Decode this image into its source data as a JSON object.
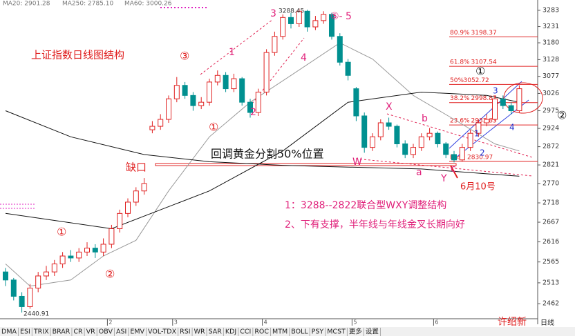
{
  "chart_data": {
    "type": "candlestick",
    "title": "上证指数日线图结构",
    "log_scale": true,
    "ylim": [
      2426,
      3294
    ],
    "yticks": [
      3283,
      3231,
      3180,
      3128,
      3077,
      3026,
      2975,
      2924,
      2872,
      2821,
      2770,
      2718,
      2667,
      2616,
      2565,
      2513,
      2462
    ],
    "up_color": "#e02020",
    "down_color": "#009090",
    "open": [
      2540,
      2520,
      2480,
      2455,
      2500,
      2530,
      2540,
      2560,
      2580,
      2575,
      2590,
      2600,
      2590,
      2610,
      2650,
      2690,
      2720,
      2750,
      2920,
      2930,
      2950,
      3010,
      3050,
      3020,
      2990,
      3000,
      3060,
      3080,
      3040,
      3070,
      3000,
      2970,
      3030,
      3150,
      3200,
      3260,
      3240,
      3280,
      3230,
      3250,
      3270,
      3200,
      3120,
      3040,
      2960,
      2870,
      2900,
      2940,
      2930,
      2880,
      2850,
      2870,
      2900,
      2910,
      2880,
      2850,
      2835,
      2870,
      2910,
      2940,
      2950,
      3010,
      2990,
      2975
    ],
    "high": [
      2550,
      2525,
      2490,
      2510,
      2540,
      2555,
      2570,
      2590,
      2595,
      2600,
      2615,
      2610,
      2625,
      2660,
      2700,
      2730,
      2760,
      2785,
      2945,
      2965,
      3020,
      3075,
      3060,
      3030,
      3015,
      3070,
      3095,
      3090,
      3085,
      3075,
      3010,
      3040,
      3160,
      3215,
      3270,
      3275,
      3288.45,
      3285,
      3265,
      3280,
      3275,
      3210,
      3130,
      3045,
      2970,
      2910,
      2950,
      2955,
      2935,
      2890,
      2880,
      2910,
      2925,
      2915,
      2885,
      2860,
      2880,
      2920,
      2950,
      2965,
      3020,
      3020,
      3000,
      3050
    ],
    "low": [
      2505,
      2470,
      2440.91,
      2450,
      2490,
      2520,
      2530,
      2550,
      2565,
      2565,
      2580,
      2575,
      2580,
      2600,
      2640,
      2680,
      2710,
      2740,
      2910,
      2920,
      2940,
      3000,
      3010,
      2975,
      2980,
      2990,
      3050,
      3030,
      3030,
      2990,
      2955,
      2960,
      3020,
      3140,
      3190,
      3225,
      3230,
      3215,
      3220,
      3240,
      3190,
      3110,
      3065,
      2945,
      2855,
      2860,
      2890,
      2920,
      2870,
      2840,
      2840,
      2860,
      2890,
      2870,
      2840,
      2828,
      2830,
      2860,
      2900,
      2930,
      2945,
      2980,
      2965,
      2970
    ],
    "close": [
      2520,
      2480,
      2455,
      2500,
      2530,
      2540,
      2560,
      2580,
      2575,
      2590,
      2600,
      2590,
      2610,
      2650,
      2690,
      2720,
      2750,
      2770,
      2930,
      2950,
      3010,
      3050,
      3020,
      2990,
      3000,
      3060,
      3080,
      3040,
      3070,
      3000,
      2970,
      3030,
      3150,
      3200,
      3260,
      3240,
      3280,
      3230,
      3250,
      3270,
      3200,
      3120,
      3080,
      2960,
      2870,
      2900,
      2940,
      2930,
      2880,
      2850,
      2870,
      2900,
      2910,
      2880,
      2850,
      2835,
      2870,
      2910,
      2940,
      2950,
      3010,
      2990,
      2975,
      3040
    ],
    "low_label": "2440.91",
    "high_label": "3288.45",
    "series": [
      {
        "name": "MA20",
        "color": "#999999",
        "x": [
          0,
          3,
          8,
          12,
          16,
          20,
          25,
          30,
          35,
          41,
          45,
          50,
          55,
          60,
          63
        ],
        "values": [
          2560,
          2505,
          2520,
          2580,
          2620,
          2750,
          2900,
          3000,
          3080,
          3180,
          3130,
          3020,
          2950,
          2880,
          2860
        ]
      },
      {
        "name": "MA60",
        "color": "#111111",
        "x": [
          0,
          13,
          25,
          34,
          42,
          51,
          59,
          63
        ],
        "values": [
          2690,
          2650,
          2750,
          2860,
          3000,
          3030,
          3020,
          3000
        ]
      },
      {
        "name": "MA250",
        "color": "#111111",
        "x": [
          0,
          8,
          17,
          25,
          34,
          42,
          51,
          63
        ],
        "values": [
          2975,
          2900,
          2850,
          2830,
          2820,
          2815,
          2810,
          2790
        ]
      }
    ],
    "header": [
      "MA20: 2901.28",
      "MA250: 2785.10",
      "MA60: 3000.26"
    ],
    "month_ticks": [
      {
        "value": 13,
        "label": "2"
      },
      {
        "value": 21,
        "label": "3"
      },
      {
        "value": 32,
        "label": "4"
      },
      {
        "value": 43,
        "label": "5"
      },
      {
        "value": 53,
        "label": "6"
      }
    ],
    "fib_levels": [
      {
        "label": "80.9%",
        "value": 3198.37
      },
      {
        "label": "61.8%",
        "value": 3107.54
      },
      {
        "label": "50%",
        "value": 3052.72
      },
      {
        "label": "38.2%",
        "value": 2998.87
      },
      {
        "label": "23.6%",
        "value": 2933.85
      },
      {
        "label": "Base",
        "value": 2830.97
      }
    ],
    "gap_level": 2822,
    "annotations": {
      "gap": "缺口",
      "golden": "回调黄金分割50%位置",
      "note1": "1：3288--2822联合型WXY调整结构",
      "note2": "2、下有支撑，半年线与年线金叉长期向好",
      "date": "6月10号",
      "author": "许绍新",
      "wave_3": "③",
      "wave_1a": "①",
      "wave_2a": "②",
      "wave_1b": "①",
      "wave_5": "⑤- 5",
      "sub_1": "1",
      "sub_2": "2",
      "sub_3": "3",
      "sub_4": "4",
      "X": "X",
      "W": "W",
      "Y": "Y",
      "a": "a",
      "b": "b",
      "c": "c",
      "right_1": "①",
      "right_2": "②",
      "ch_1": "1",
      "ch_2": "2",
      "ch_3": "3",
      "ch_4": "4"
    },
    "tabs": [
      "DMA",
      "ESI",
      "TRIX",
      "BRAR",
      "CR",
      "VR",
      "OBV",
      "ASI",
      "EMV",
      "VOL-TDX",
      "RSI",
      "WR",
      "SAR",
      "KDJ",
      "CCI",
      "ROC",
      "MTM",
      "BOLL",
      "PSY",
      "MCST",
      "更多",
      "设置"
    ],
    "period": "日线"
  }
}
